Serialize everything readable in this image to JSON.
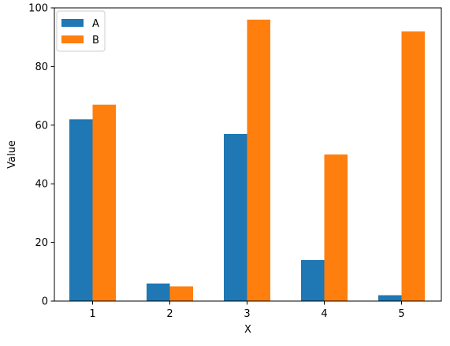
{
  "chart_data": {
    "type": "bar",
    "title": "",
    "xlabel": "X",
    "ylabel": "Value",
    "categories": [
      "1",
      "2",
      "3",
      "4",
      "5"
    ],
    "series": [
      {
        "name": "A",
        "color": "#1f77b4",
        "values": [
          62,
          6,
          57,
          14,
          2
        ]
      },
      {
        "name": "B",
        "color": "#ff7f0e",
        "values": [
          67,
          5,
          96,
          50,
          92
        ]
      }
    ],
    "ylim": [
      0,
      100
    ],
    "yticks": [
      0,
      20,
      40,
      60,
      80,
      100
    ],
    "grid": false,
    "legend_position": "top-left"
  }
}
